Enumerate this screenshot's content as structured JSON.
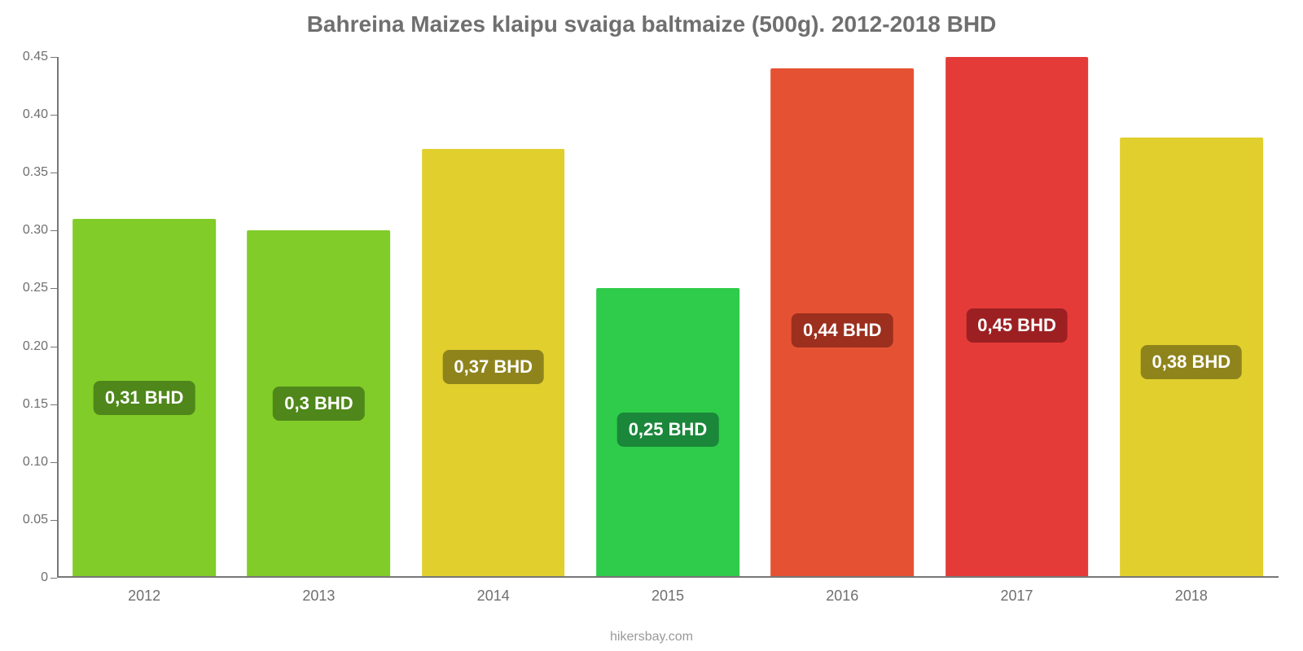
{
  "chart": {
    "type": "bar",
    "title": "Bahreina Maizes klaipu svaiga baltmaize (500g). 2012-2018 BHD",
    "title_color": "#6f6f6f",
    "title_fontsize": 28,
    "background_color": "#ffffff",
    "ylim_min": 0,
    "ylim_max": 0.45,
    "yticks": [
      0,
      0.05,
      0.1,
      0.15,
      0.2,
      0.25,
      0.3,
      0.35,
      0.4,
      0.45
    ],
    "ytick_labels": [
      "0",
      "0.05",
      "0.10",
      "0.15",
      "0.20",
      "0.25",
      "0.30",
      "0.35",
      "0.40",
      "0.45"
    ],
    "tick_color": "#6f6f6f",
    "tick_fontsize": 16,
    "x_labels": [
      "2012",
      "2013",
      "2014",
      "2015",
      "2016",
      "2017",
      "2018"
    ],
    "values": [
      0.31,
      0.3,
      0.37,
      0.25,
      0.44,
      0.45,
      0.38
    ],
    "value_labels": [
      "0,31 BHD",
      "0,3 BHD",
      "0,37 BHD",
      "0,25 BHD",
      "0,44 BHD",
      "0,45 BHD",
      "0,38 BHD"
    ],
    "bar_colors": [
      "#81cc29",
      "#81cc29",
      "#e1cf2e",
      "#2ecc4a",
      "#e55233",
      "#e43b39",
      "#e1cf2e"
    ],
    "label_bg_colors": [
      "#4f871a",
      "#4f871a",
      "#8f841c",
      "#1b873a",
      "#9c2f1e",
      "#9c2022",
      "#8f841c"
    ],
    "bar_width_ratio": 0.82,
    "value_label_fontsize": 22,
    "value_label_color": "#ffffff",
    "credit": "hikersbay.com",
    "credit_color": "#9a9a9a",
    "axis_color": "#777777"
  }
}
